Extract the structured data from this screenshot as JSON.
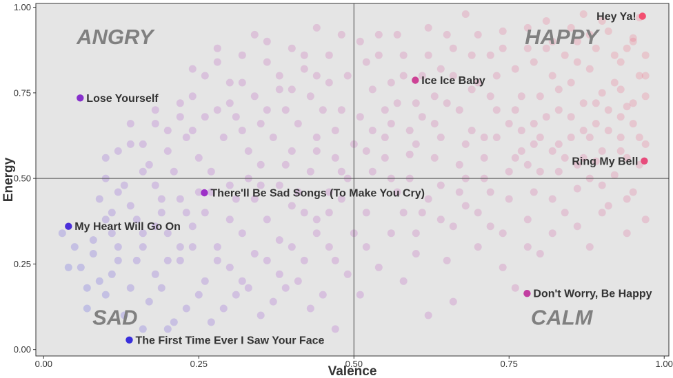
{
  "chart_data": {
    "type": "scatter",
    "title": "",
    "xlabel": "Valence",
    "ylabel": "Energy",
    "xlim": [
      0,
      1
    ],
    "ylim": [
      0,
      1
    ],
    "x_ticks": [
      "0.00",
      "0.25",
      "0.50",
      "0.75",
      "1.00"
    ],
    "y_ticks": [
      "0.00",
      "0.25",
      "0.50",
      "0.75",
      "1.00"
    ],
    "x_tick_values": [
      0,
      0.25,
      0.5,
      0.75,
      1
    ],
    "y_tick_values": [
      0,
      0.25,
      0.5,
      0.75,
      1
    ],
    "grid": false,
    "background_color": "#e5e5e5",
    "reference_lines": {
      "x": 0.5,
      "y": 0.5
    },
    "quadrant_labels": [
      {
        "text": "ANGRY",
        "x": 0.115,
        "y": 0.915
      },
      {
        "text": "HAPPY",
        "x": 0.835,
        "y": 0.915
      },
      {
        "text": "SAD",
        "x": 0.115,
        "y": 0.095
      },
      {
        "text": "CALM",
        "x": 0.835,
        "y": 0.095
      }
    ],
    "color_scale": {
      "low": "#0a2ee6",
      "mid": "#9b30c8",
      "high": "#f24f70"
    },
    "highlighted_songs": [
      {
        "name": "Hey Ya!",
        "x": 0.965,
        "y": 0.974,
        "label_side": "left"
      },
      {
        "name": "Ice Ice Baby",
        "x": 0.599,
        "y": 0.787,
        "label_side": "right"
      },
      {
        "name": "Lose Yourself",
        "x": 0.059,
        "y": 0.735,
        "label_side": "right"
      },
      {
        "name": "Ring My Bell",
        "x": 0.968,
        "y": 0.551,
        "label_side": "left"
      },
      {
        "name": "There'll Be Sad Songs (To Make You Cry)",
        "x": 0.259,
        "y": 0.458,
        "label_side": "right"
      },
      {
        "name": "My Heart Will Go On",
        "x": 0.04,
        "y": 0.36,
        "label_side": "right"
      },
      {
        "name": "Don't Worry, Be Happy",
        "x": 0.779,
        "y": 0.164,
        "label_side": "right"
      },
      {
        "name": "The First Time Ever I Saw Your Face",
        "x": 0.138,
        "y": 0.028,
        "label_side": "right"
      }
    ],
    "background_points": [
      [
        0.96,
        0.97
      ],
      [
        0.95,
        0.91
      ],
      [
        0.94,
        0.88
      ],
      [
        0.97,
        0.86
      ],
      [
        0.93,
        0.84
      ],
      [
        0.91,
        0.93
      ],
      [
        0.89,
        0.88
      ],
      [
        0.96,
        0.8
      ],
      [
        0.92,
        0.78
      ],
      [
        0.88,
        0.82
      ],
      [
        0.97,
        0.74
      ],
      [
        0.94,
        0.71
      ],
      [
        0.9,
        0.75
      ],
      [
        0.86,
        0.9
      ],
      [
        0.84,
        0.86
      ],
      [
        0.82,
        0.8
      ],
      [
        0.87,
        0.72
      ],
      [
        0.95,
        0.66
      ],
      [
        0.91,
        0.64
      ],
      [
        0.97,
        0.6
      ],
      [
        0.93,
        0.58
      ],
      [
        0.88,
        0.62
      ],
      [
        0.85,
        0.68
      ],
      [
        0.8,
        0.74
      ],
      [
        0.78,
        0.88
      ],
      [
        0.76,
        0.82
      ],
      [
        0.74,
        0.93
      ],
      [
        0.72,
        0.86
      ],
      [
        0.7,
        0.78
      ],
      [
        0.79,
        0.66
      ],
      [
        0.83,
        0.6
      ],
      [
        0.96,
        0.54
      ],
      [
        0.92,
        0.51
      ],
      [
        0.89,
        0.55
      ],
      [
        0.86,
        0.47
      ],
      [
        0.95,
        0.46
      ],
      [
        0.91,
        0.42
      ],
      [
        0.97,
        0.38
      ],
      [
        0.84,
        0.4
      ],
      [
        0.8,
        0.52
      ],
      [
        0.77,
        0.58
      ],
      [
        0.73,
        0.7
      ],
      [
        0.69,
        0.64
      ],
      [
        0.66,
        0.88
      ],
      [
        0.64,
        0.82
      ],
      [
        0.62,
        0.94
      ],
      [
        0.68,
        0.98
      ],
      [
        0.81,
        0.96
      ],
      [
        0.87,
        0.98
      ],
      [
        0.6,
        0.72
      ],
      [
        0.58,
        0.86
      ],
      [
        0.56,
        0.78
      ],
      [
        0.54,
        0.92
      ],
      [
        0.52,
        0.84
      ],
      [
        0.51,
        0.68
      ],
      [
        0.55,
        0.62
      ],
      [
        0.59,
        0.57
      ],
      [
        0.63,
        0.66
      ],
      [
        0.67,
        0.54
      ],
      [
        0.71,
        0.5
      ],
      [
        0.75,
        0.44
      ],
      [
        0.78,
        0.38
      ],
      [
        0.82,
        0.34
      ],
      [
        0.88,
        0.3
      ],
      [
        0.94,
        0.34
      ],
      [
        0.72,
        0.36
      ],
      [
        0.68,
        0.42
      ],
      [
        0.64,
        0.48
      ],
      [
        0.61,
        0.4
      ],
      [
        0.57,
        0.46
      ],
      [
        0.53,
        0.52
      ],
      [
        0.5,
        0.6
      ],
      [
        0.52,
        0.4
      ],
      [
        0.56,
        0.34
      ],
      [
        0.6,
        0.28
      ],
      [
        0.65,
        0.26
      ],
      [
        0.7,
        0.3
      ],
      [
        0.74,
        0.24
      ],
      [
        0.8,
        0.28
      ],
      [
        0.76,
        0.18
      ],
      [
        0.66,
        0.14
      ],
      [
        0.58,
        0.2
      ],
      [
        0.62,
        0.1
      ],
      [
        0.54,
        0.24
      ],
      [
        0.51,
        0.16
      ],
      [
        0.52,
        0.3
      ],
      [
        0.48,
        0.92
      ],
      [
        0.46,
        0.86
      ],
      [
        0.44,
        0.94
      ],
      [
        0.42,
        0.82
      ],
      [
        0.4,
        0.88
      ],
      [
        0.38,
        0.76
      ],
      [
        0.36,
        0.84
      ],
      [
        0.34,
        0.92
      ],
      [
        0.32,
        0.78
      ],
      [
        0.3,
        0.72
      ],
      [
        0.28,
        0.84
      ],
      [
        0.26,
        0.8
      ],
      [
        0.24,
        0.74
      ],
      [
        0.22,
        0.68
      ],
      [
        0.2,
        0.64
      ],
      [
        0.18,
        0.7
      ],
      [
        0.16,
        0.6
      ],
      [
        0.14,
        0.66
      ],
      [
        0.12,
        0.58
      ],
      [
        0.1,
        0.5
      ],
      [
        0.45,
        0.7
      ],
      [
        0.41,
        0.66
      ],
      [
        0.37,
        0.62
      ],
      [
        0.33,
        0.58
      ],
      [
        0.29,
        0.62
      ],
      [
        0.25,
        0.56
      ],
      [
        0.21,
        0.52
      ],
      [
        0.17,
        0.54
      ],
      [
        0.13,
        0.48
      ],
      [
        0.47,
        0.56
      ],
      [
        0.43,
        0.52
      ],
      [
        0.39,
        0.54
      ],
      [
        0.35,
        0.48
      ],
      [
        0.31,
        0.44
      ],
      [
        0.27,
        0.46
      ],
      [
        0.23,
        0.4
      ],
      [
        0.19,
        0.44
      ],
      [
        0.15,
        0.38
      ],
      [
        0.11,
        0.4
      ],
      [
        0.08,
        0.32
      ],
      [
        0.06,
        0.24
      ],
      [
        0.09,
        0.2
      ],
      [
        0.12,
        0.26
      ],
      [
        0.16,
        0.3
      ],
      [
        0.2,
        0.34
      ],
      [
        0.24,
        0.36
      ],
      [
        0.28,
        0.3
      ],
      [
        0.32,
        0.34
      ],
      [
        0.36,
        0.38
      ],
      [
        0.4,
        0.42
      ],
      [
        0.44,
        0.38
      ],
      [
        0.48,
        0.44
      ],
      [
        0.46,
        0.3
      ],
      [
        0.42,
        0.26
      ],
      [
        0.38,
        0.22
      ],
      [
        0.34,
        0.28
      ],
      [
        0.3,
        0.24
      ],
      [
        0.26,
        0.2
      ],
      [
        0.22,
        0.26
      ],
      [
        0.18,
        0.22
      ],
      [
        0.14,
        0.18
      ],
      [
        0.1,
        0.16
      ],
      [
        0.07,
        0.12
      ],
      [
        0.13,
        0.1
      ],
      [
        0.17,
        0.14
      ],
      [
        0.21,
        0.08
      ],
      [
        0.25,
        0.16
      ],
      [
        0.29,
        0.12
      ],
      [
        0.33,
        0.18
      ],
      [
        0.37,
        0.14
      ],
      [
        0.41,
        0.2
      ],
      [
        0.45,
        0.16
      ],
      [
        0.49,
        0.22
      ],
      [
        0.47,
        0.06
      ],
      [
        0.2,
        0.06
      ],
      [
        0.16,
        0.06
      ],
      [
        0.11,
        0.34
      ],
      [
        0.05,
        0.3
      ],
      [
        0.09,
        0.44
      ],
      [
        0.18,
        0.48
      ],
      [
        0.35,
        0.66
      ],
      [
        0.43,
        0.74
      ],
      [
        0.49,
        0.8
      ],
      [
        0.47,
        0.64
      ],
      [
        0.39,
        0.7
      ],
      [
        0.31,
        0.68
      ],
      [
        0.23,
        0.62
      ],
      [
        0.27,
        0.52
      ],
      [
        0.35,
        0.54
      ],
      [
        0.44,
        0.58
      ],
      [
        0.49,
        0.5
      ],
      [
        0.41,
        0.46
      ],
      [
        0.33,
        0.5
      ],
      [
        0.25,
        0.46
      ],
      [
        0.19,
        0.4
      ],
      [
        0.22,
        0.3
      ],
      [
        0.3,
        0.38
      ],
      [
        0.38,
        0.32
      ],
      [
        0.46,
        0.4
      ],
      [
        0.5,
        0.34
      ],
      [
        0.55,
        0.7
      ],
      [
        0.59,
        0.64
      ],
      [
        0.63,
        0.74
      ],
      [
        0.67,
        0.7
      ],
      [
        0.71,
        0.62
      ],
      [
        0.75,
        0.66
      ],
      [
        0.79,
        0.6
      ],
      [
        0.83,
        0.7
      ],
      [
        0.87,
        0.64
      ],
      [
        0.91,
        0.7
      ],
      [
        0.85,
        0.78
      ],
      [
        0.81,
        0.88
      ],
      [
        0.77,
        0.74
      ],
      [
        0.73,
        0.8
      ],
      [
        0.69,
        0.86
      ],
      [
        0.65,
        0.92
      ],
      [
        0.61,
        0.8
      ],
      [
        0.57,
        0.92
      ],
      [
        0.53,
        0.76
      ],
      [
        0.55,
        0.56
      ],
      [
        0.59,
        0.5
      ],
      [
        0.63,
        0.56
      ],
      [
        0.67,
        0.46
      ],
      [
        0.71,
        0.56
      ],
      [
        0.75,
        0.52
      ],
      [
        0.79,
        0.46
      ],
      [
        0.83,
        0.52
      ],
      [
        0.87,
        0.56
      ],
      [
        0.9,
        0.48
      ],
      [
        0.93,
        0.62
      ],
      [
        0.89,
        0.72
      ],
      [
        0.93,
        0.76
      ],
      [
        0.97,
        0.8
      ],
      [
        0.95,
        0.9
      ],
      [
        0.9,
        0.96
      ],
      [
        0.85,
        0.94
      ],
      [
        0.79,
        0.84
      ],
      [
        0.83,
        0.76
      ],
      [
        0.76,
        0.7
      ],
      [
        0.72,
        0.74
      ],
      [
        0.68,
        0.6
      ],
      [
        0.64,
        0.62
      ],
      [
        0.6,
        0.6
      ],
      [
        0.56,
        0.66
      ],
      [
        0.52,
        0.58
      ],
      [
        0.58,
        0.4
      ],
      [
        0.62,
        0.44
      ],
      [
        0.66,
        0.36
      ],
      [
        0.7,
        0.4
      ],
      [
        0.74,
        0.34
      ],
      [
        0.78,
        0.3
      ],
      [
        0.82,
        0.44
      ],
      [
        0.86,
        0.36
      ],
      [
        0.9,
        0.4
      ],
      [
        0.94,
        0.44
      ],
      [
        0.88,
        0.5
      ],
      [
        0.84,
        0.56
      ],
      [
        0.8,
        0.62
      ],
      [
        0.76,
        0.56
      ],
      [
        0.72,
        0.46
      ],
      [
        0.68,
        0.5
      ],
      [
        0.64,
        0.38
      ],
      [
        0.6,
        0.34
      ],
      [
        0.56,
        0.5
      ],
      [
        0.95,
        0.72
      ],
      [
        0.92,
        0.86
      ],
      [
        0.88,
        0.92
      ],
      [
        0.86,
        0.84
      ],
      [
        0.82,
        0.9
      ],
      [
        0.78,
        0.94
      ],
      [
        0.74,
        0.88
      ],
      [
        0.7,
        0.92
      ],
      [
        0.66,
        0.8
      ],
      [
        0.62,
        0.86
      ],
      [
        0.58,
        0.8
      ],
      [
        0.54,
        0.86
      ],
      [
        0.51,
        0.9
      ],
      [
        0.53,
        0.64
      ],
      [
        0.57,
        0.72
      ],
      [
        0.61,
        0.68
      ],
      [
        0.65,
        0.72
      ],
      [
        0.69,
        0.76
      ],
      [
        0.73,
        0.62
      ],
      [
        0.77,
        0.64
      ],
      [
        0.81,
        0.68
      ],
      [
        0.85,
        0.62
      ],
      [
        0.89,
        0.66
      ],
      [
        0.93,
        0.68
      ],
      [
        0.96,
        0.62
      ],
      [
        0.94,
        0.56
      ],
      [
        0.9,
        0.58
      ],
      [
        0.86,
        0.54
      ],
      [
        0.82,
        0.58
      ],
      [
        0.78,
        0.54
      ],
      [
        0.03,
        0.34
      ],
      [
        0.04,
        0.24
      ],
      [
        0.07,
        0.18
      ],
      [
        0.11,
        0.22
      ],
      [
        0.15,
        0.26
      ],
      [
        0.19,
        0.18
      ],
      [
        0.23,
        0.12
      ],
      [
        0.27,
        0.08
      ],
      [
        0.31,
        0.16
      ],
      [
        0.35,
        0.1
      ],
      [
        0.39,
        0.18
      ],
      [
        0.43,
        0.12
      ],
      [
        0.47,
        0.26
      ],
      [
        0.44,
        0.34
      ],
      [
        0.4,
        0.3
      ],
      [
        0.36,
        0.26
      ],
      [
        0.32,
        0.2
      ],
      [
        0.28,
        0.26
      ],
      [
        0.24,
        0.3
      ],
      [
        0.2,
        0.26
      ],
      [
        0.16,
        0.34
      ],
      [
        0.12,
        0.3
      ],
      [
        0.08,
        0.28
      ],
      [
        0.1,
        0.38
      ],
      [
        0.14,
        0.42
      ],
      [
        0.18,
        0.36
      ],
      [
        0.22,
        0.44
      ],
      [
        0.26,
        0.4
      ],
      [
        0.3,
        0.48
      ],
      [
        0.34,
        0.44
      ],
      [
        0.38,
        0.48
      ],
      [
        0.42,
        0.4
      ],
      [
        0.46,
        0.46
      ],
      [
        0.48,
        0.52
      ],
      [
        0.44,
        0.62
      ],
      [
        0.4,
        0.58
      ],
      [
        0.36,
        0.7
      ],
      [
        0.32,
        0.64
      ],
      [
        0.28,
        0.7
      ],
      [
        0.24,
        0.64
      ],
      [
        0.2,
        0.58
      ],
      [
        0.16,
        0.52
      ],
      [
        0.12,
        0.46
      ],
      [
        0.1,
        0.56
      ],
      [
        0.14,
        0.6
      ],
      [
        0.18,
        0.66
      ],
      [
        0.22,
        0.72
      ],
      [
        0.26,
        0.68
      ],
      [
        0.3,
        0.78
      ],
      [
        0.34,
        0.74
      ],
      [
        0.38,
        0.8
      ],
      [
        0.42,
        0.86
      ],
      [
        0.46,
        0.78
      ],
      [
        0.48,
        0.7
      ],
      [
        0.44,
        0.8
      ],
      [
        0.4,
        0.76
      ],
      [
        0.36,
        0.9
      ],
      [
        0.32,
        0.86
      ],
      [
        0.28,
        0.88
      ],
      [
        0.24,
        0.82
      ]
    ]
  }
}
